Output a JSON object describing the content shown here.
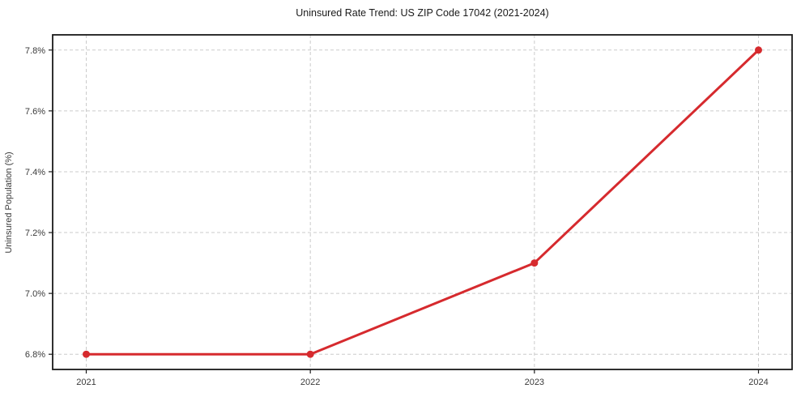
{
  "chart_data": {
    "type": "line",
    "title": "Uninsured Rate Trend: US ZIP Code 17042 (2021-2024)",
    "xlabel": "",
    "ylabel": "Uninsured Population (%)",
    "x": [
      2021,
      2022,
      2023,
      2024
    ],
    "x_tick_labels": [
      "2021",
      "2022",
      "2023",
      "2024"
    ],
    "values": [
      6.8,
      6.8,
      7.1,
      7.8
    ],
    "y_ticks": [
      6.8,
      7.0,
      7.2,
      7.4,
      7.6,
      7.8
    ],
    "y_tick_labels": [
      "6.8%",
      "7.0%",
      "7.2%",
      "7.4%",
      "7.6%",
      "7.8%"
    ],
    "xlim": [
      2020.85,
      2024.15
    ],
    "ylim": [
      6.75,
      7.85
    ],
    "grid": true,
    "grid_style": "dashed",
    "legend": "none",
    "marker": "circle",
    "colors": {
      "line": "#d62a2e",
      "grid": "#cbcbcb",
      "spine": "#1a1a1a",
      "tick_label": "#3a3a3a",
      "title": "#1a1a1a",
      "background": "#ffffff"
    }
  }
}
